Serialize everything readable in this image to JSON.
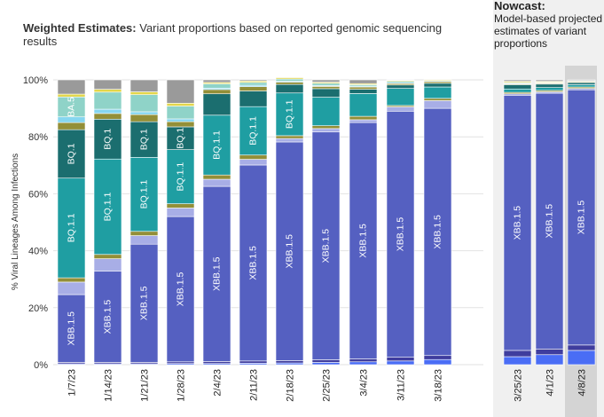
{
  "title": {
    "bold": "Weighted Estimates:",
    "rest": " Variant proportions based on reported genomic sequencing results"
  },
  "nowcast": {
    "head": "Nowcast:",
    "text": "Model-based projected estimates of variant proportions"
  },
  "colors": {
    "XBB.1.5": "#5560c1",
    "XBB.1.5-dark": "#3f3d9e",
    "XBB-blue": "#4a6df5",
    "XBB.1.5-light": "#a8aee6",
    "BQ.1.1": "#1f9ea2",
    "BQ.1": "#1b6e6f",
    "BA.5": "#8fd3c8",
    "olive": "#938f38",
    "lightblue": "#86d6f0",
    "yellow": "#e3d64a",
    "gray": "#9a9a9a",
    "nowcast_bg": "#f0f0f0"
  },
  "chart_data": {
    "type": "bar",
    "stacked": true,
    "title": "Weighted Estimates: Variant proportions based on reported genomic sequencing results",
    "ylabel": "% Viral Lineages Among Infections",
    "ylim": [
      0,
      100
    ],
    "yticks": [
      "0%",
      "20%",
      "40%",
      "60%",
      "80%",
      "100%"
    ],
    "grid": true,
    "categories": [
      "1/7/23",
      "1/14/23",
      "1/21/23",
      "1/28/23",
      "2/4/23",
      "2/11/23",
      "2/18/23",
      "2/25/23",
      "3/4/23",
      "3/11/23",
      "3/18/23",
      "3/25/23",
      "4/1/23",
      "4/8/23"
    ],
    "nowcast_categories": [
      "3/25/23",
      "4/1/23",
      "4/8/23"
    ],
    "series": [
      {
        "name": "",
        "color_key": "XBB-blue",
        "values": [
          0.3,
          0.3,
          0.3,
          0.4,
          0.4,
          0.5,
          0.6,
          0.8,
          1.0,
          1.3,
          1.8,
          2.8,
          3.5,
          5.0
        ]
      },
      {
        "name": "",
        "color_key": "XBB.1.5-dark",
        "values": [
          0.5,
          0.5,
          0.5,
          0.6,
          0.7,
          0.8,
          0.8,
          0.9,
          1.0,
          1.3,
          1.4,
          2.2,
          2.0,
          1.9
        ]
      },
      {
        "name": "XBB.1.5",
        "color_key": "XBB.1.5",
        "values": [
          23.8,
          32.0,
          41.5,
          51.0,
          61.5,
          68.8,
          76.8,
          80.0,
          83.0,
          86.4,
          86.8,
          89.6,
          89.8,
          89.6
        ]
      },
      {
        "name": "",
        "color_key": "XBB.1.5-light",
        "values": [
          4.4,
          4.4,
          3.0,
          3.0,
          2.5,
          2.0,
          1.2,
          1.2,
          1.0,
          1.5,
          2.7,
          0.5,
          0.5,
          0.5
        ]
      },
      {
        "name": "",
        "color_key": "olive",
        "values": [
          1.5,
          1.5,
          1.5,
          1.5,
          1.5,
          1.5,
          1.0,
          1.0,
          1.2,
          0.5,
          0.8,
          0.5,
          0.5,
          0.5
        ]
      },
      {
        "name": "BQ.1.1",
        "color_key": "BQ.1.1",
        "values": [
          35.0,
          33.5,
          26.0,
          19.0,
          21.0,
          17.0,
          15.0,
          10.0,
          8.0,
          6.0,
          4.0,
          1.2,
          1.0,
          0.8
        ]
      },
      {
        "name": "BQ.1",
        "color_key": "BQ.1",
        "values": [
          17.0,
          14.0,
          12.5,
          8.0,
          7.5,
          5.5,
          3.0,
          3.0,
          1.5,
          1.2,
          1.3,
          1.5,
          1.2,
          0.7
        ]
      },
      {
        "name": "",
        "color_key": "olive",
        "values": [
          2.5,
          2.0,
          2.5,
          1.8,
          1.5,
          1.5,
          0.8,
          0.8,
          0.8,
          0.5,
          0.6,
          0.3,
          0.3,
          0.3
        ]
      },
      {
        "name": "",
        "color_key": "lightblue",
        "values": [
          2.0,
          1.5,
          1.0,
          1.0,
          0.5,
          0.5,
          0.3,
          0.3,
          0.3,
          0.3,
          0.3,
          0.2,
          0.2,
          0.2
        ]
      },
      {
        "name": "BA.5",
        "color_key": "BA.5",
        "values": [
          7.0,
          6.0,
          6.0,
          4.5,
          1.5,
          1.0,
          0.8,
          0.8,
          0.5,
          0.5,
          0.0,
          0.3,
          0.2,
          0.0
        ]
      },
      {
        "name": "",
        "color_key": "yellow",
        "values": [
          1.0,
          1.0,
          1.0,
          1.0,
          0.5,
          0.5,
          0.5,
          0.4,
          0.4,
          0.3,
          0.3,
          0.4,
          0.3,
          0.2
        ]
      },
      {
        "name": "",
        "color_key": "gray",
        "values": [
          5.0,
          3.3,
          4.2,
          8.2,
          0.9,
          0.4,
          0.2,
          0.8,
          1.3,
          0.2,
          0.0,
          0.5,
          0.5,
          0.3
        ]
      }
    ],
    "bar_labels": [
      {
        "bar": 0,
        "series": "XBB.1.5",
        "text": "XBB.1.5"
      },
      {
        "bar": 1,
        "series": "XBB.1.5",
        "text": "XBB.1.5"
      },
      {
        "bar": 2,
        "series": "XBB.1.5",
        "text": "XBB.1.5"
      },
      {
        "bar": 3,
        "series": "XBB.1.5",
        "text": "XBB.1.5"
      },
      {
        "bar": 4,
        "series": "XBB.1.5",
        "text": "XBB.1.5"
      },
      {
        "bar": 5,
        "series": "XBB.1.5",
        "text": "XBB.1.5"
      },
      {
        "bar": 6,
        "series": "XBB.1.5",
        "text": "XBB.1.5"
      },
      {
        "bar": 7,
        "series": "XBB.1.5",
        "text": "XBB.1.5"
      },
      {
        "bar": 8,
        "series": "XBB.1.5",
        "text": "XBB.1.5"
      },
      {
        "bar": 9,
        "series": "XBB.1.5",
        "text": "XBB.1.5"
      },
      {
        "bar": 10,
        "series": "XBB.1.5",
        "text": "XBB.1.5"
      },
      {
        "bar": 11,
        "series": "XBB.1.5",
        "text": "XBB.1.5"
      },
      {
        "bar": 12,
        "series": "XBB.1.5",
        "text": "XBB.1.5"
      },
      {
        "bar": 13,
        "series": "XBB.1.5",
        "text": "XBB.1.5"
      },
      {
        "bar": 0,
        "series": "BQ.1.1",
        "text": "BQ.1.1"
      },
      {
        "bar": 1,
        "series": "BQ.1.1",
        "text": "BQ.1.1"
      },
      {
        "bar": 2,
        "series": "BQ.1.1",
        "text": "BQ.1.1"
      },
      {
        "bar": 3,
        "series": "BQ.1.1",
        "text": "BQ.1.1"
      },
      {
        "bar": 4,
        "series": "BQ.1.1",
        "text": "BQ.1.1"
      },
      {
        "bar": 5,
        "series": "BQ.1.1",
        "text": "BQ.1.1"
      },
      {
        "bar": 6,
        "series": "BQ.1.1",
        "text": "BQ.1.1"
      },
      {
        "bar": 0,
        "series": "BQ.1",
        "text": "BQ.1"
      },
      {
        "bar": 1,
        "series": "BQ.1",
        "text": "BQ.1"
      },
      {
        "bar": 2,
        "series": "BQ.1",
        "text": "BQ.1"
      },
      {
        "bar": 3,
        "series": "BQ.1",
        "text": "BQ.1"
      },
      {
        "bar": 0,
        "series": "BA.5",
        "text": "BA.5"
      }
    ]
  }
}
